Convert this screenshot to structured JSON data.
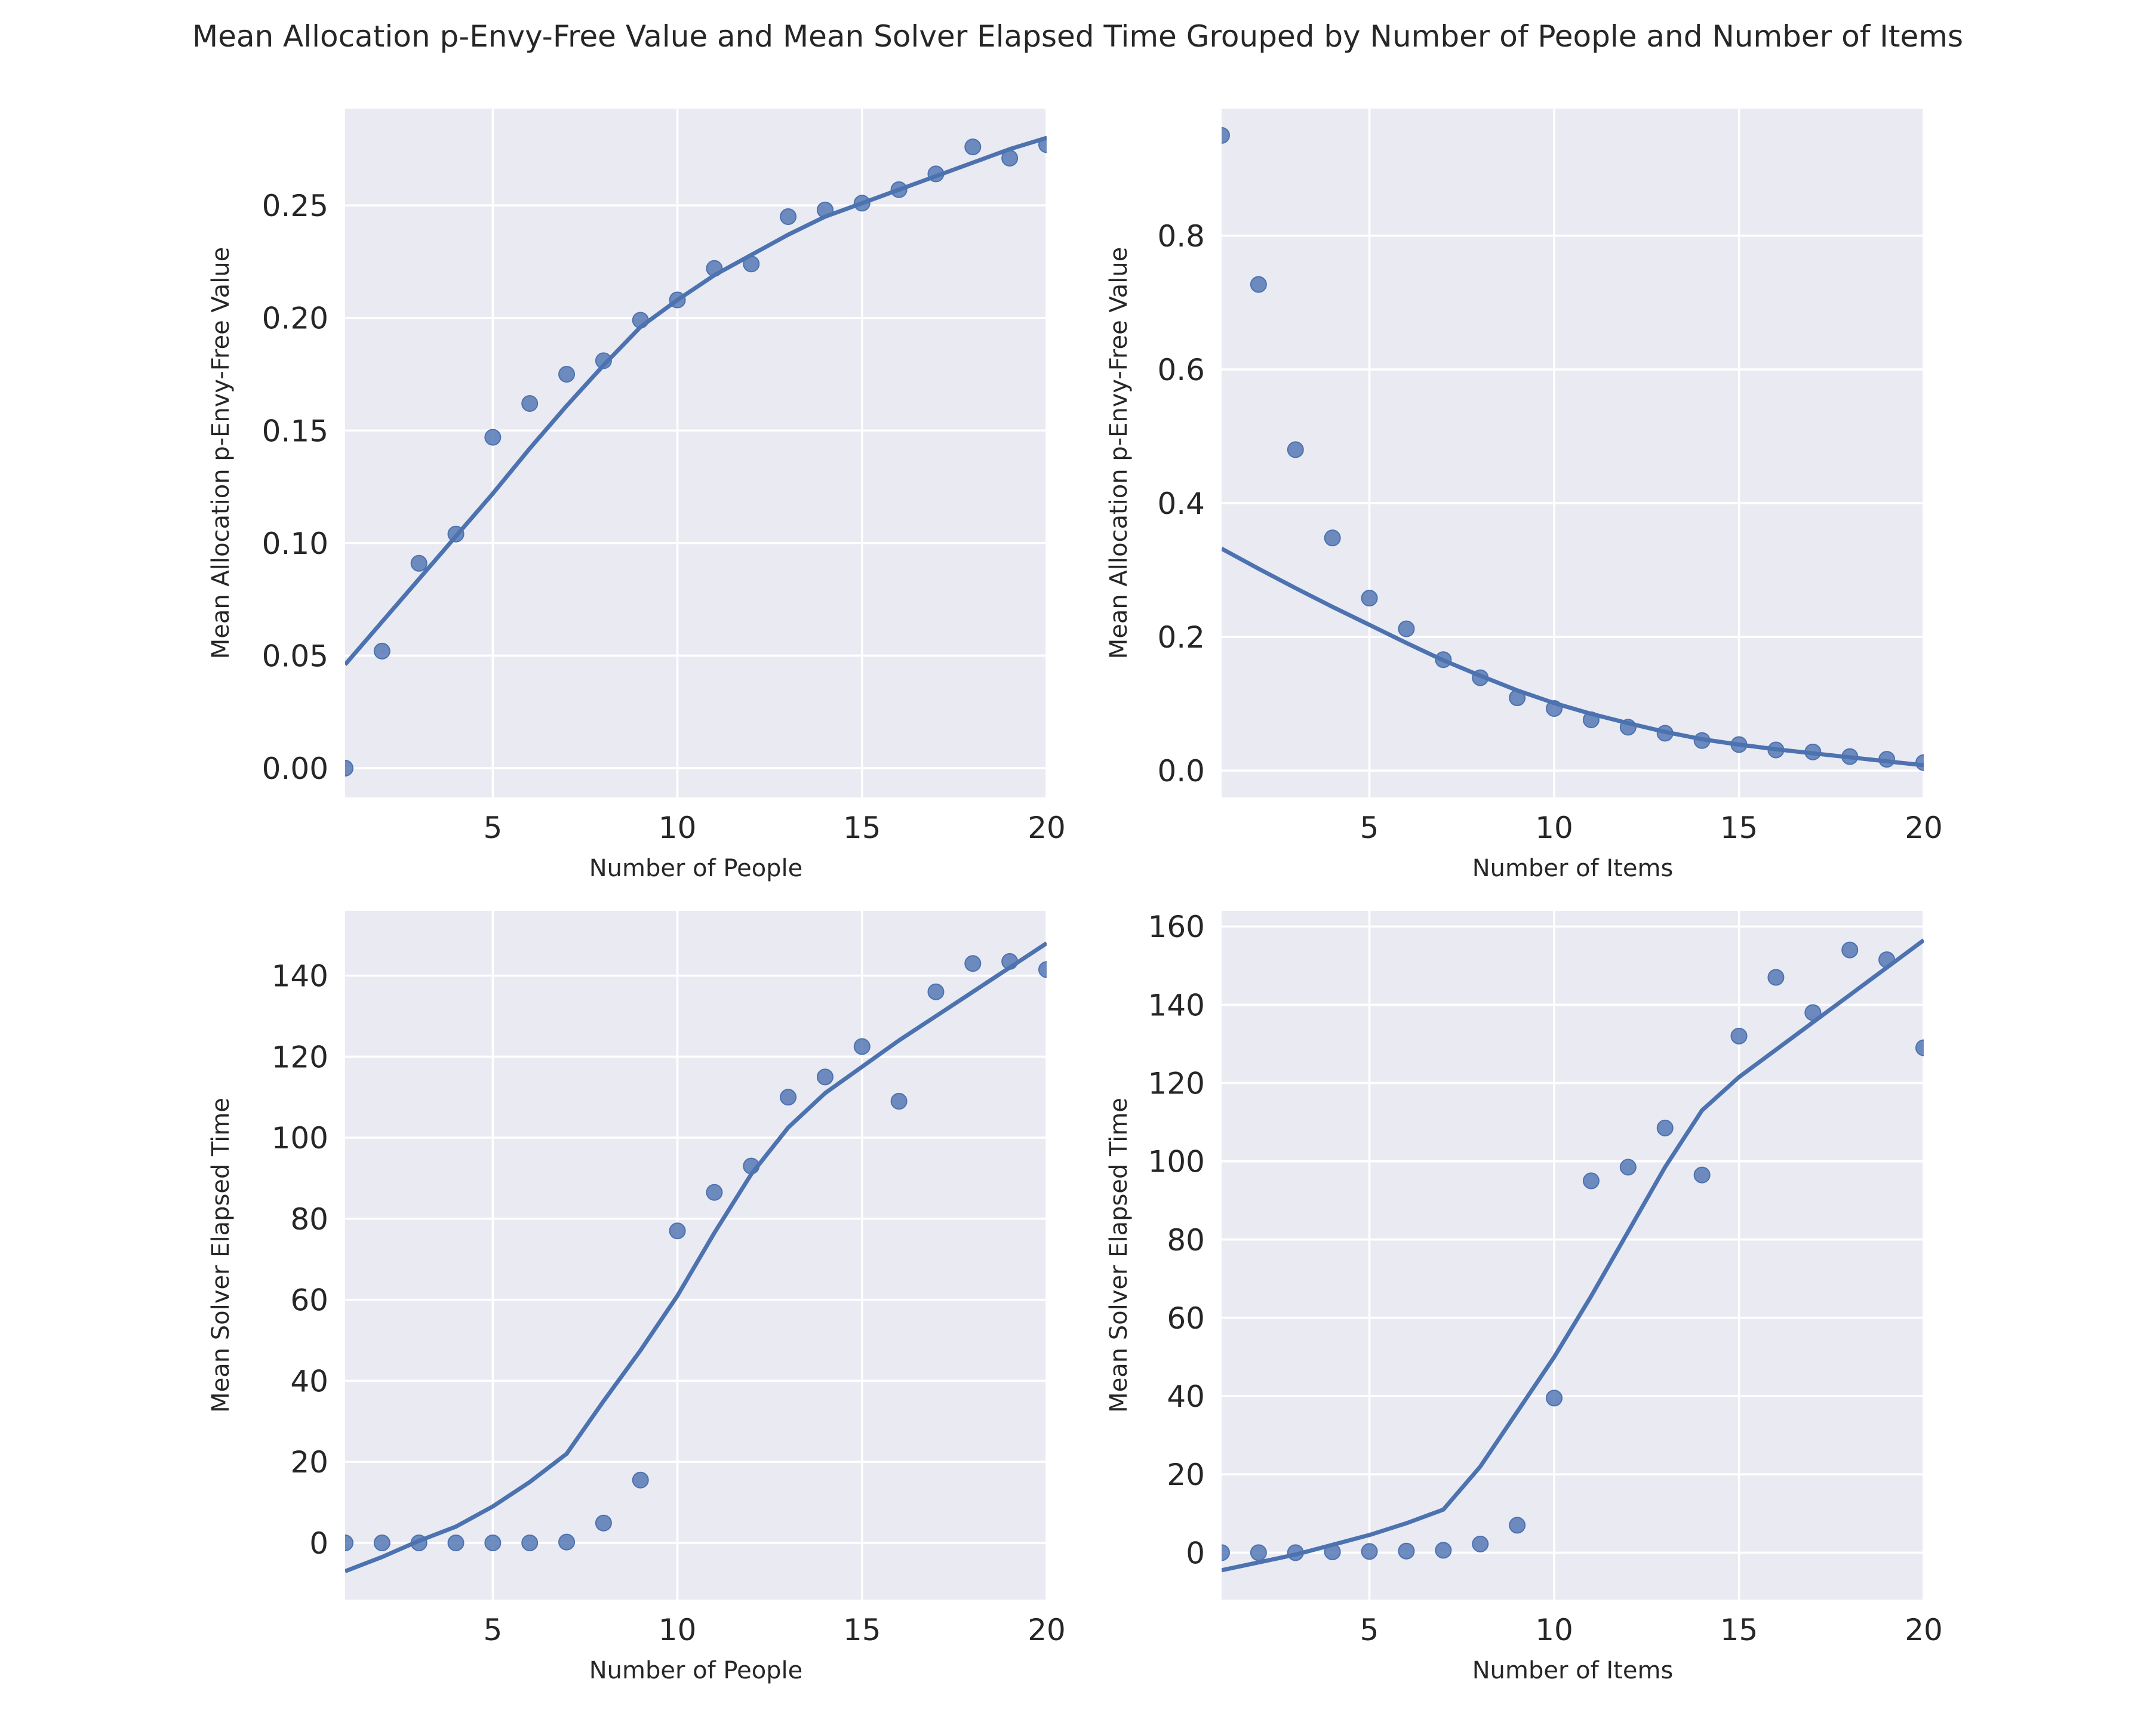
{
  "figure": {
    "title": "Mean Allocation p-Envy-Free Value and Mean Solver Elapsed Time Grouped by Number of People and Number of Items"
  },
  "chart_data": [
    {
      "type": "scatter",
      "xlabel": "Number of People",
      "ylabel": "Mean Allocation p-Envy-Free Value",
      "xlim": [
        1,
        20
      ],
      "ylim": [
        -0.013,
        0.293
      ],
      "xticks": [
        5,
        10,
        15,
        20
      ],
      "xtick_labels": [
        "5",
        "10",
        "15",
        "20"
      ],
      "yticks": [
        0,
        0.05,
        0.1,
        0.15,
        0.2,
        0.25
      ],
      "ytick_labels": [
        "0.00",
        "0.05",
        "0.10",
        "0.15",
        "0.20",
        "0.25"
      ],
      "grid": true,
      "points": {
        "x": [
          1,
          2,
          3,
          4,
          5,
          6,
          7,
          8,
          9,
          10,
          11,
          12,
          13,
          14,
          15,
          16,
          17,
          18,
          19,
          20
        ],
        "y": [
          0.0,
          0.052,
          0.091,
          0.104,
          0.147,
          0.162,
          0.175,
          0.181,
          0.199,
          0.208,
          0.222,
          0.224,
          0.245,
          0.248,
          0.251,
          0.257,
          0.264,
          0.276,
          0.271,
          0.277
        ]
      },
      "fit_line": {
        "x": [
          1,
          2,
          3,
          4,
          5,
          6,
          7,
          8,
          9,
          10,
          11,
          12,
          13,
          14,
          15,
          16,
          17,
          18,
          19,
          20
        ],
        "y": [
          0.046,
          0.065,
          0.084,
          0.103,
          0.122,
          0.142,
          0.161,
          0.179,
          0.196,
          0.208,
          0.219,
          0.228,
          0.237,
          0.245,
          0.251,
          0.257,
          0.263,
          0.269,
          0.275,
          0.28
        ]
      }
    },
    {
      "type": "scatter",
      "xlabel": "Number of Items",
      "ylabel": "Mean Allocation p-Envy-Free Value",
      "xlim": [
        1,
        20
      ],
      "ylim": [
        -0.04,
        0.99
      ],
      "xticks": [
        5,
        10,
        15,
        20
      ],
      "xtick_labels": [
        "5",
        "10",
        "15",
        "20"
      ],
      "yticks": [
        0,
        0.2,
        0.4,
        0.6,
        0.8
      ],
      "ytick_labels": [
        "0.0",
        "0.2",
        "0.4",
        "0.6",
        "0.8"
      ],
      "grid": true,
      "points": {
        "x": [
          1,
          2,
          3,
          4,
          5,
          6,
          7,
          8,
          9,
          10,
          11,
          12,
          13,
          14,
          15,
          16,
          17,
          18,
          19,
          20
        ],
        "y": [
          0.95,
          0.727,
          0.48,
          0.348,
          0.258,
          0.212,
          0.166,
          0.139,
          0.109,
          0.093,
          0.076,
          0.065,
          0.056,
          0.045,
          0.039,
          0.031,
          0.028,
          0.021,
          0.017,
          0.012
        ]
      },
      "fit_line": {
        "x": [
          1,
          2,
          3,
          4,
          5,
          6,
          7,
          8,
          9,
          10,
          11,
          12,
          13,
          14,
          15,
          16,
          17,
          18,
          19,
          20
        ],
        "y": [
          0.332,
          0.302,
          0.273,
          0.245,
          0.218,
          0.191,
          0.165,
          0.142,
          0.12,
          0.101,
          0.085,
          0.071,
          0.058,
          0.047,
          0.039,
          0.032,
          0.026,
          0.02,
          0.014,
          0.008
        ]
      }
    },
    {
      "type": "scatter",
      "xlabel": "Number of People",
      "ylabel": "Mean Solver Elapsed Time",
      "xlim": [
        1,
        20
      ],
      "ylim": [
        -14,
        156
      ],
      "xticks": [
        5,
        10,
        15,
        20
      ],
      "xtick_labels": [
        "5",
        "10",
        "15",
        "20"
      ],
      "yticks": [
        0,
        20,
        40,
        60,
        80,
        100,
        120,
        140
      ],
      "ytick_labels": [
        "0",
        "20",
        "40",
        "60",
        "80",
        "100",
        "120",
        "140"
      ],
      "grid": true,
      "points": {
        "x": [
          1,
          2,
          3,
          4,
          5,
          6,
          7,
          8,
          9,
          10,
          11,
          12,
          13,
          14,
          15,
          16,
          17,
          18,
          19,
          20
        ],
        "y": [
          0,
          0,
          0,
          0,
          0,
          0,
          0.2,
          4.9,
          15.5,
          77,
          86.5,
          93,
          110,
          115,
          122.5,
          109,
          136,
          143,
          143.5,
          141.5
        ]
      },
      "fit_line": {
        "x": [
          1,
          2,
          3,
          4,
          5,
          6,
          7,
          8,
          9,
          10,
          11,
          12,
          13,
          14,
          15,
          16,
          17,
          18,
          19,
          20
        ],
        "y": [
          -7,
          -3.5,
          0.5,
          4,
          9,
          15,
          22,
          35,
          47.5,
          61,
          76.5,
          91,
          102.5,
          111,
          117.5,
          124,
          130,
          136,
          142,
          148
        ]
      }
    },
    {
      "type": "scatter",
      "xlabel": "Number of Items",
      "ylabel": "Mean Solver Elapsed Time",
      "xlim": [
        1,
        20
      ],
      "ylim": [
        -12,
        164
      ],
      "xticks": [
        5,
        10,
        15,
        20
      ],
      "xtick_labels": [
        "5",
        "10",
        "15",
        "20"
      ],
      "yticks": [
        0,
        20,
        40,
        60,
        80,
        100,
        120,
        140,
        160
      ],
      "ytick_labels": [
        "0",
        "20",
        "40",
        "60",
        "80",
        "100",
        "120",
        "140",
        "160"
      ],
      "grid": true,
      "points": {
        "x": [
          1,
          2,
          3,
          4,
          5,
          6,
          7,
          8,
          9,
          10,
          11,
          12,
          13,
          14,
          15,
          16,
          17,
          18,
          19,
          20
        ],
        "y": [
          0,
          0,
          0,
          0.2,
          0.3,
          0.4,
          0.6,
          2.2,
          7,
          39.5,
          95,
          98.5,
          108.5,
          96.5,
          132,
          147,
          138,
          154,
          151.5,
          129
        ]
      },
      "fit_line": {
        "x": [
          1,
          2,
          3,
          4,
          5,
          6,
          7,
          8,
          9,
          10,
          11,
          12,
          13,
          14,
          15,
          16,
          17,
          18,
          19,
          20
        ],
        "y": [
          -4.5,
          -2.5,
          -0.5,
          2,
          4.5,
          7.5,
          11,
          22,
          36,
          50,
          65.5,
          82,
          98.5,
          113,
          121.5,
          128.5,
          135.5,
          142.5,
          149.5,
          156.5
        ]
      }
    }
  ]
}
